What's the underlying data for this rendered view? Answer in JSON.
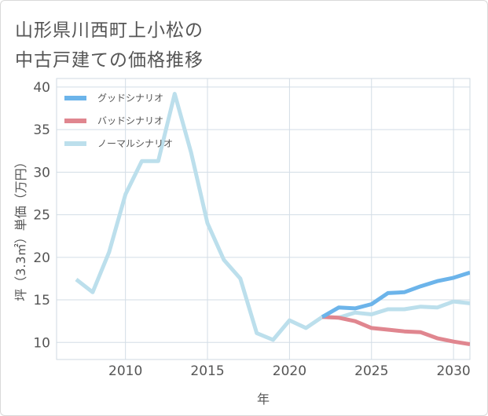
{
  "title_lines": [
    "山形県川西町上小松の",
    "中古戸建ての価格推移"
  ],
  "chart_data": {
    "type": "line",
    "title": "山形県川西町上小松の中古戸建ての価格推移",
    "xlabel": "年",
    "ylabel": "坪（3.3㎡）単価（万円）",
    "xlim": [
      2005.8,
      2031.0
    ],
    "ylim": [
      8.0,
      41.0
    ],
    "x_ticks": [
      2010,
      2015,
      2020,
      2025,
      2030
    ],
    "y_ticks": [
      10,
      15,
      20,
      25,
      30,
      35,
      40
    ],
    "grid": true,
    "legend_position": "top-left",
    "series": [
      {
        "name": "グッドシナリオ",
        "color": "#6cb4ea",
        "x": [
          2022,
          2023,
          2024,
          2025,
          2026,
          2027,
          2028,
          2029,
          2030,
          2031
        ],
        "y": [
          13.0,
          14.1,
          14.0,
          14.5,
          15.8,
          15.9,
          16.6,
          17.2,
          17.6,
          18.2
        ]
      },
      {
        "name": "バッドシナリオ",
        "color": "#e0868f",
        "x": [
          2022,
          2023,
          2024,
          2025,
          2026,
          2027,
          2028,
          2029,
          2030,
          2031
        ],
        "y": [
          13.0,
          12.9,
          12.5,
          11.7,
          11.5,
          11.3,
          11.2,
          10.5,
          10.1,
          9.8
        ]
      },
      {
        "name": "ノーマルシナリオ",
        "color": "#bcdfec",
        "x": [
          2007,
          2008,
          2009,
          2010,
          2011,
          2012,
          2013,
          2014,
          2015,
          2016,
          2017,
          2018,
          2019,
          2020,
          2021,
          2022,
          2023,
          2024,
          2025,
          2026,
          2027,
          2028,
          2029,
          2030,
          2031
        ],
        "y": [
          17.4,
          15.9,
          20.6,
          27.4,
          31.3,
          31.3,
          39.2,
          32.3,
          24.0,
          19.7,
          17.5,
          11.1,
          10.3,
          12.6,
          11.7,
          13.0,
          12.9,
          13.5,
          13.3,
          13.9,
          13.9,
          14.2,
          14.1,
          14.8,
          14.6
        ]
      }
    ]
  }
}
